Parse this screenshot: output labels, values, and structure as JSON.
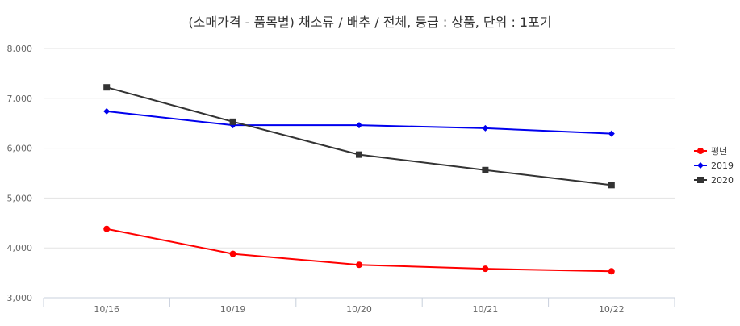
{
  "chart_data": {
    "type": "line",
    "title": "(소매가격 - 품목별) 채소류 / 배추 / 전체, 등급 : 상품, 단위 : 1포기",
    "categories": [
      "10/16",
      "10/19",
      "10/20",
      "10/21",
      "10/22"
    ],
    "ylim": [
      3000,
      8000
    ],
    "yticks": [
      3000,
      4000,
      5000,
      6000,
      7000,
      8000
    ],
    "ytick_labels": [
      "3,000",
      "4,000",
      "5,000",
      "6,000",
      "7,000",
      "8,000"
    ],
    "grid": true,
    "legend_position": "right",
    "series": [
      {
        "name": "평년",
        "color": "#ff0000",
        "marker": "circle",
        "values": [
          4380,
          3880,
          3660,
          3580,
          3530
        ]
      },
      {
        "name": "2019",
        "color": "#0000ee",
        "marker": "diamond",
        "values": [
          6740,
          6460,
          6460,
          6400,
          6290
        ]
      },
      {
        "name": "2020",
        "color": "#333333",
        "marker": "square",
        "values": [
          7220,
          6530,
          5870,
          5560,
          5260
        ]
      }
    ]
  }
}
